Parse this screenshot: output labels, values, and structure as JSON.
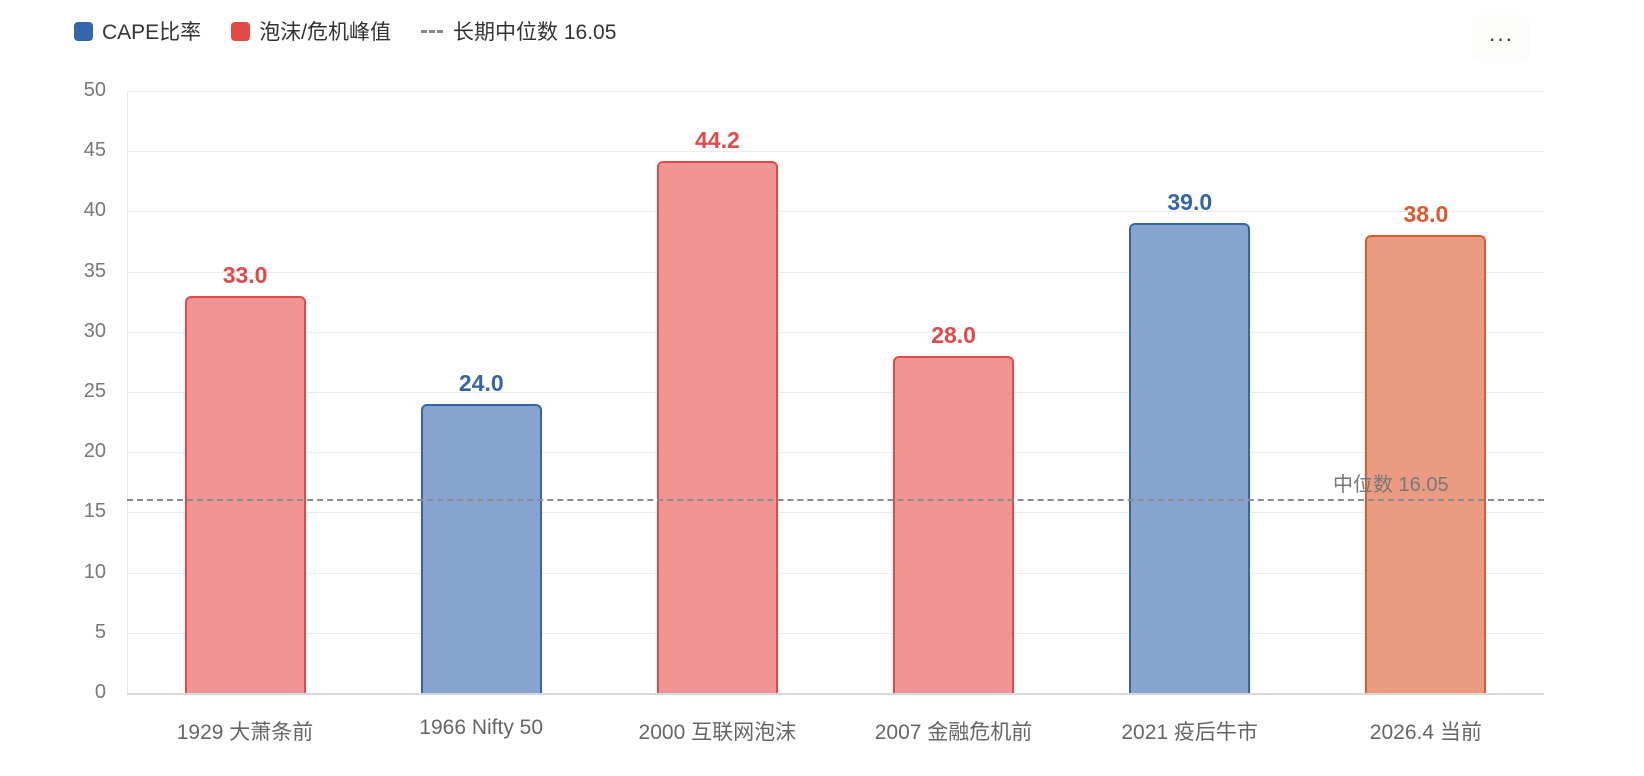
{
  "legend": {
    "items": [
      {
        "label": "CAPE比率",
        "color": "#3566ab",
        "type": "square"
      },
      {
        "label": "泡沫/危机峰值",
        "color": "#e24a4a",
        "type": "square"
      },
      {
        "label": "长期中位数 16.05",
        "color": "#888888",
        "type": "dash"
      }
    ]
  },
  "menu": {
    "icon": "more-icon",
    "label": "···"
  },
  "median_label": "中位数 16.05",
  "chart_data": {
    "type": "bar",
    "title": "",
    "xlabel": "",
    "ylabel": "",
    "ylim": [
      0,
      50
    ],
    "yticks": [
      0,
      5,
      10,
      15,
      20,
      25,
      30,
      35,
      40,
      45,
      50
    ],
    "grid": true,
    "legend_position": "top-left",
    "categories": [
      "1929 大萧条前",
      "1966 Nifty 50",
      "2000 互联网泡沫",
      "2007 金融危机前",
      "2021 疫后牛市",
      "2026.4 当前"
    ],
    "values": [
      33.0,
      24.0,
      44.2,
      28.0,
      39.0,
      38.0
    ],
    "value_labels": [
      "33.0",
      "24.0",
      "44.2",
      "28.0",
      "39.0",
      "38.0"
    ],
    "bar_groups": [
      "泡沫/危机峰值",
      "CAPE比率",
      "泡沫/危机峰值",
      "泡沫/危机峰值",
      "CAPE比率",
      "当前"
    ],
    "bar_colors": [
      {
        "stroke": "#e24a4a",
        "fill": "#f09494",
        "label": "#e24a4a"
      },
      {
        "stroke": "#3566ab",
        "fill": "#86a4cf",
        "label": "#3566ab"
      },
      {
        "stroke": "#e24a4a",
        "fill": "#f09494",
        "label": "#e24a4a"
      },
      {
        "stroke": "#e24a4a",
        "fill": "#f09494",
        "label": "#e24a4a"
      },
      {
        "stroke": "#3566ab",
        "fill": "#86a4cf",
        "label": "#3566ab"
      },
      {
        "stroke": "#dd5a30",
        "fill": "#eb9b82",
        "label": "#dd5a30"
      }
    ],
    "reference_lines": [
      {
        "name": "长期中位数",
        "value": 16.05,
        "label": "中位数 16.05",
        "style": "dashed",
        "color": "#8c8c8c"
      }
    ]
  }
}
